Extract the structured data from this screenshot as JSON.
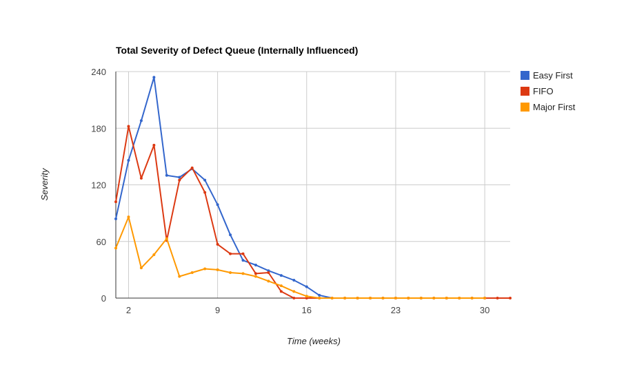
{
  "chart_data": {
    "type": "line",
    "title": "Total Severity of Defect Queue (Internally Influenced)",
    "xlabel": "Time (weeks)",
    "ylabel": "Severity",
    "xlim": [
      1,
      32
    ],
    "ylim": [
      0,
      240
    ],
    "x_ticks": [
      2,
      9,
      16,
      23,
      30
    ],
    "y_ticks": [
      0,
      60,
      120,
      180,
      240
    ],
    "grid": true,
    "legend": "right",
    "series": [
      {
        "name": "Easy First",
        "color": "#3366cc",
        "x": [
          1,
          2,
          3,
          4,
          5,
          6,
          7,
          8,
          9,
          10,
          11,
          12,
          13,
          14,
          15,
          16,
          17,
          18,
          19,
          20,
          21,
          22,
          23,
          24,
          25,
          26,
          27,
          28,
          29,
          30
        ],
        "values": [
          84,
          146,
          188,
          234,
          130,
          128,
          137,
          125,
          99,
          67,
          40,
          35,
          29,
          24,
          19,
          12,
          3,
          0,
          0,
          0,
          0,
          0,
          0,
          0,
          0,
          0,
          0,
          0,
          0,
          0
        ]
      },
      {
        "name": "FIFO",
        "color": "#dc3912",
        "x": [
          1,
          2,
          3,
          4,
          5,
          6,
          7,
          8,
          9,
          10,
          11,
          12,
          13,
          14,
          15,
          16,
          17,
          18,
          19,
          20,
          21,
          22,
          23,
          24,
          25,
          26,
          27,
          28,
          29,
          30,
          31,
          32
        ],
        "values": [
          102,
          182,
          127,
          162,
          61,
          125,
          138,
          112,
          57,
          47,
          47,
          26,
          27,
          7,
          0,
          0,
          0,
          0,
          0,
          0,
          0,
          0,
          0,
          0,
          0,
          0,
          0,
          0,
          0,
          0,
          0,
          0
        ]
      },
      {
        "name": "Major First",
        "color": "#ff9900",
        "x": [
          1,
          2,
          3,
          4,
          5,
          6,
          7,
          8,
          9,
          10,
          11,
          12,
          13,
          14,
          15,
          16,
          17,
          18,
          19,
          20,
          21,
          22,
          23,
          24,
          25,
          26,
          27,
          28,
          29,
          30
        ],
        "values": [
          53,
          86,
          32,
          46,
          63,
          23,
          27,
          31,
          30,
          27,
          26,
          23,
          18,
          13,
          7,
          2,
          0,
          0,
          0,
          0,
          0,
          0,
          0,
          0,
          0,
          0,
          0,
          0,
          0,
          0
        ]
      }
    ]
  }
}
